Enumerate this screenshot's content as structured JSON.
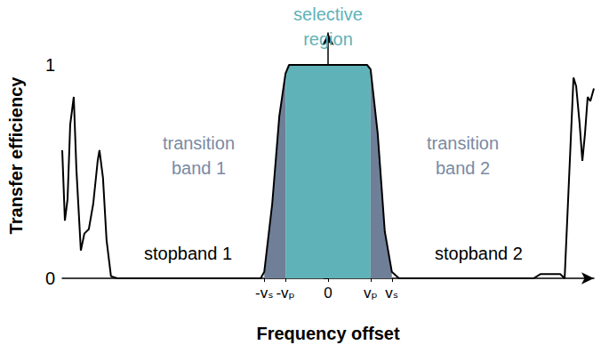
{
  "chart_data": {
    "type": "line",
    "x_label": "Frequency offset",
    "y_label": "Transfer efficiency",
    "x": [
      -300,
      -297,
      -294,
      -291,
      -287,
      -284,
      -279,
      -275,
      -270,
      -265,
      -260,
      -258,
      -254,
      -250,
      -245,
      -238,
      -76,
      -72,
      -63,
      -55,
      -48,
      -44,
      44,
      48,
      56,
      64,
      72,
      80,
      232,
      240,
      262,
      267,
      272,
      277,
      280,
      284,
      287,
      290,
      293,
      296,
      300
    ],
    "values": [
      0.6,
      0.27,
      0.37,
      0.72,
      0.85,
      0.51,
      0.13,
      0.21,
      0.23,
      0.35,
      0.55,
      0.6,
      0.47,
      0.18,
      0.01,
      0,
      0,
      0.03,
      0.35,
      0.76,
      0.96,
      1.0,
      1.0,
      0.98,
      0.68,
      0.22,
      0.03,
      0,
      0,
      0.02,
      0.02,
      0,
      0.47,
      0.94,
      0.9,
      0.72,
      0.55,
      0.68,
      0.85,
      0.83,
      0.89
    ],
    "color": "#000000",
    "xlim": [
      -300,
      300
    ],
    "xticks": [
      {
        "value": -72,
        "label": "-vₛ"
      },
      {
        "value": -48,
        "label": "-vₚ"
      },
      0,
      {
        "value": 48,
        "label": "vₚ"
      },
      {
        "value": 72,
        "label": "vₛ"
      }
    ],
    "ylim": [
      0,
      1.15
    ],
    "yticks": [
      0,
      1
    ],
    "grid": false,
    "shaded_regions": [
      {
        "from": -72,
        "to": -48,
        "color": "#6f7f98"
      },
      {
        "from": -48,
        "to": 48,
        "color": "#5fb2b7"
      },
      {
        "from": 48,
        "to": 72,
        "color": "#6f7f98"
      }
    ],
    "annotations": [
      {
        "text": "selective\nregion",
        "x": 0,
        "y": 1.18,
        "color": "#5fb2b7"
      },
      {
        "text": "transition\nband 1",
        "x": -146,
        "y": 0.575,
        "color": "#7a8aa3"
      },
      {
        "text": "transition\nband 2",
        "x": 152,
        "y": 0.575,
        "color": "#7a8aa3"
      },
      {
        "text": "stopband 1",
        "x": -158,
        "y": 0.117,
        "color": "#000000"
      },
      {
        "text": "stopband 2",
        "x": 170,
        "y": 0.117,
        "color": "#000000"
      }
    ]
  }
}
